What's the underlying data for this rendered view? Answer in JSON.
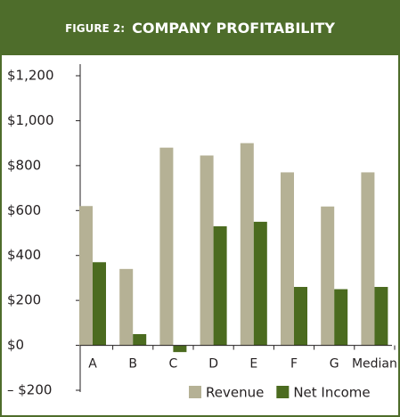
{
  "chart_data": {
    "type": "bar",
    "figure_label": "FIGURE 2:",
    "title": "COMPANY PROFITABILITY",
    "categories": [
      "A",
      "B",
      "C",
      "D",
      "E",
      "F",
      "G",
      "Median"
    ],
    "series": [
      {
        "name": "Revenue",
        "color": "#b5b195",
        "values": [
          620,
          340,
          880,
          845,
          900,
          770,
          618,
          770
        ]
      },
      {
        "name": "Net Income",
        "color": "#4b6b1f",
        "values": [
          370,
          50,
          -30,
          530,
          550,
          260,
          250,
          260
        ]
      }
    ],
    "ylim": [
      -200,
      1200
    ],
    "yticks": [
      {
        "value": -200,
        "label": "– $200"
      },
      {
        "value": 0,
        "label": "$0"
      },
      {
        "value": 200,
        "label": "$200"
      },
      {
        "value": 400,
        "label": "$400"
      },
      {
        "value": 600,
        "label": "$600"
      },
      {
        "value": 800,
        "label": "$800"
      },
      {
        "value": 1000,
        "label": "$1,000"
      },
      {
        "value": 1200,
        "label": "$1,200"
      }
    ],
    "legend": "bottom-right"
  }
}
